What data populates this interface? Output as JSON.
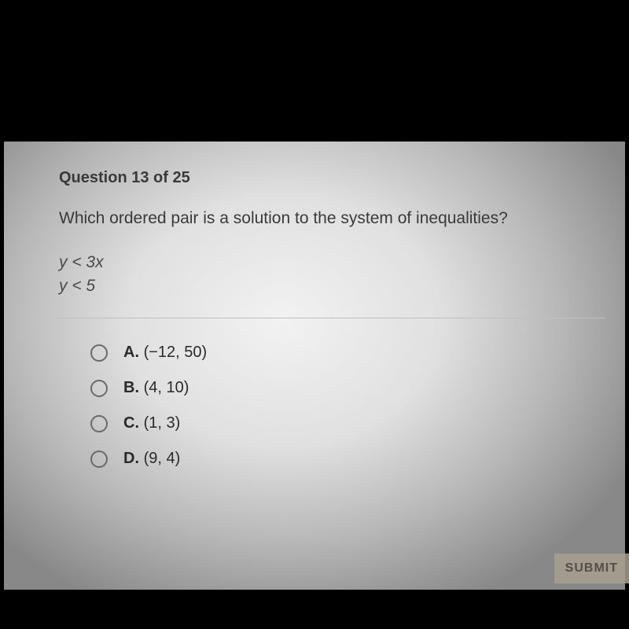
{
  "header": {
    "question_number": "Question 13 of 25"
  },
  "question": {
    "prompt": "Which ordered pair is a solution to the system of inequalities?",
    "inequalities": {
      "line1": "y < 3x",
      "line2": "y < 5"
    }
  },
  "options": {
    "a": {
      "letter": "A.",
      "value": "(−12, 50)"
    },
    "b": {
      "letter": "B.",
      "value": "(4, 10)"
    },
    "c": {
      "letter": "C.",
      "value": "(1, 3)"
    },
    "d": {
      "letter": "D.",
      "value": "(9, 4)"
    }
  },
  "buttons": {
    "submit": "SUBMIT"
  },
  "colors": {
    "background_black": "#000000",
    "paper_light": "#f2f2f2",
    "paper_dark": "#888888",
    "text": "#3a3a3a",
    "radio_border": "#6a6a6a",
    "submit_bg": "#a8a090"
  }
}
